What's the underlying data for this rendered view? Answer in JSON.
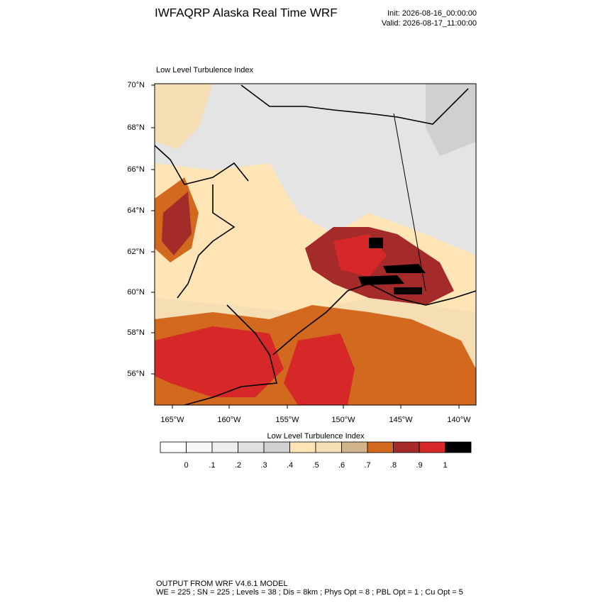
{
  "header": {
    "title": "IWFAQRP Alaska Real Time WRF",
    "init": "Init: 2026-08-16_00:00:00",
    "valid": "Valid: 2026-08-17_11:00:00"
  },
  "map": {
    "title": "Low Level Turbulence Index",
    "lat_labels": [
      "70°N",
      "68°N",
      "66°N",
      "64°N",
      "62°N",
      "60°N",
      "58°N",
      "56°N"
    ],
    "lon_labels": [
      "165°W",
      "160°W",
      "155°W",
      "150°W",
      "145°W",
      "140°W"
    ]
  },
  "colorbar": {
    "title": "Low Level Turbulence Index",
    "colors": [
      "#ffffff",
      "#f8f8f8",
      "#eeeeee",
      "#e0e0e0",
      "#d0d0d0",
      "#ffe4b5",
      "#f5deb3",
      "#d2b48c",
      "#d2691e",
      "#a52a2a",
      "#d62828",
      "#000000"
    ],
    "labels": [
      "0",
      ".1",
      ".2",
      ".3",
      ".4",
      ".5",
      ".6",
      ".7",
      ".8",
      ".9",
      "1"
    ]
  },
  "footer": {
    "line1": "OUTPUT FROM WRF V4.6.1 MODEL",
    "line2": "WE = 225 ; SN = 225 ; Levels = 38 ; Dis = 8km ; Phys Opt = 8 ; PBL Opt = 1 ; Cu Opt = 5"
  }
}
